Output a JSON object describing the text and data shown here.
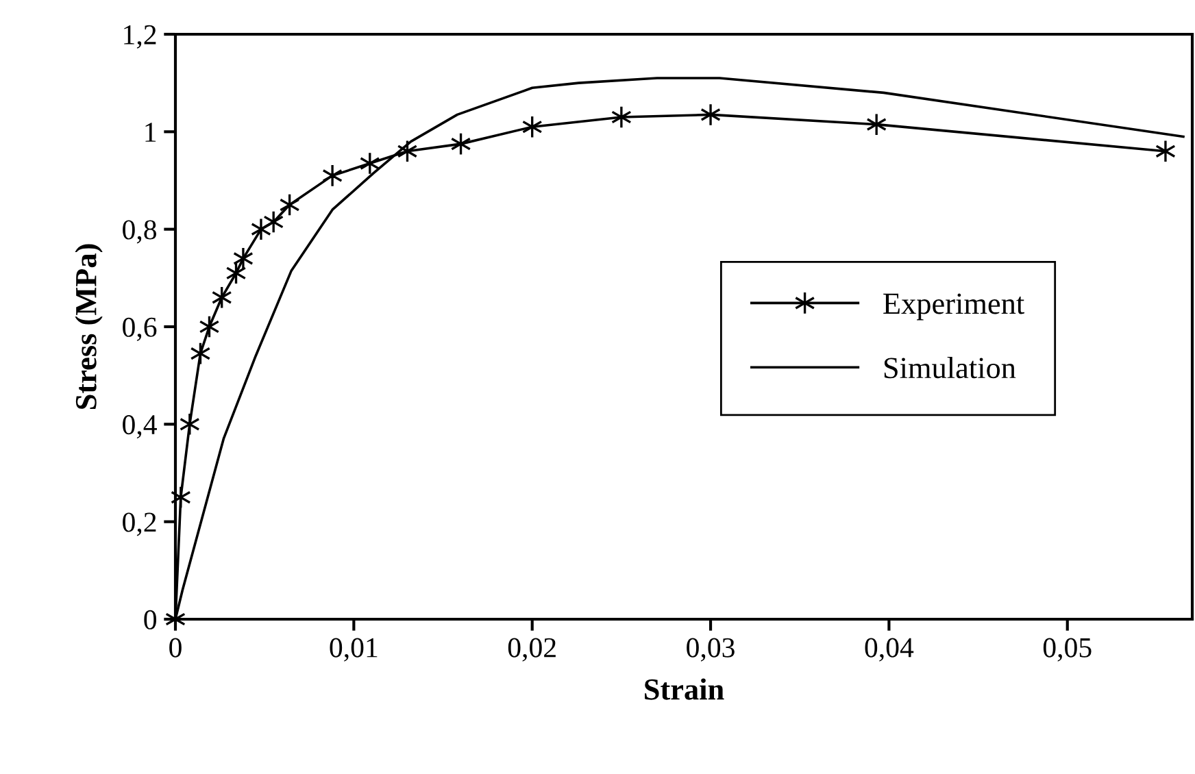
{
  "chart_data": {
    "type": "line",
    "xlabel": "Strain",
    "ylabel": "Stress (MPa)",
    "xlim": [
      0,
      0.057
    ],
    "ylim": [
      0,
      1.2
    ],
    "xticks": [
      0,
      {
        "value": 0.01,
        "label": "0,01"
      },
      {
        "value": 0.02,
        "label": "0,02"
      },
      {
        "value": 0.03,
        "label": "0,03"
      },
      {
        "value": 0.04,
        "label": "0,04"
      },
      {
        "value": 0.05,
        "label": "0,05"
      }
    ],
    "yticks": [
      0,
      {
        "value": 0.2,
        "label": "0,2"
      },
      {
        "value": 0.4,
        "label": "0,4"
      },
      {
        "value": 0.6,
        "label": "0,6"
      },
      {
        "value": 0.8,
        "label": "0,8"
      },
      1,
      {
        "value": 1.2,
        "label": "1,2"
      }
    ],
    "grid": false,
    "legend": "right",
    "series": [
      {
        "name": "Experiment",
        "color": "#000000",
        "marker": "cross",
        "x": [
          0,
          0.0003,
          0.0008,
          0.0014,
          0.0019,
          0.0026,
          0.0034,
          0.0038,
          0.0048,
          0.0055,
          0.0064,
          0.0088,
          0.0109,
          0.013,
          0.016,
          0.02,
          0.025,
          0.03,
          0.0393,
          0.0555
        ],
        "values": [
          0,
          0.25,
          0.4,
          0.545,
          0.6,
          0.66,
          0.71,
          0.74,
          0.8,
          0.815,
          0.85,
          0.91,
          0.935,
          0.96,
          0.975,
          1.01,
          1.03,
          1.035,
          1.015,
          0.96
        ]
      },
      {
        "name": "Simulation",
        "color": "#000000",
        "marker": "none",
        "x": [
          0,
          0.0004,
          0.0027,
          0.0045,
          0.0065,
          0.0088,
          0.0111,
          0.0132,
          0.0158,
          0.02,
          0.0226,
          0.027,
          0.0305,
          0.0397,
          0.0565
        ],
        "values": [
          0,
          0.06,
          0.37,
          0.54,
          0.715,
          0.84,
          0.915,
          0.98,
          1.035,
          1.09,
          1.1,
          1.11,
          1.11,
          1.08,
          0.99
        ]
      }
    ]
  }
}
